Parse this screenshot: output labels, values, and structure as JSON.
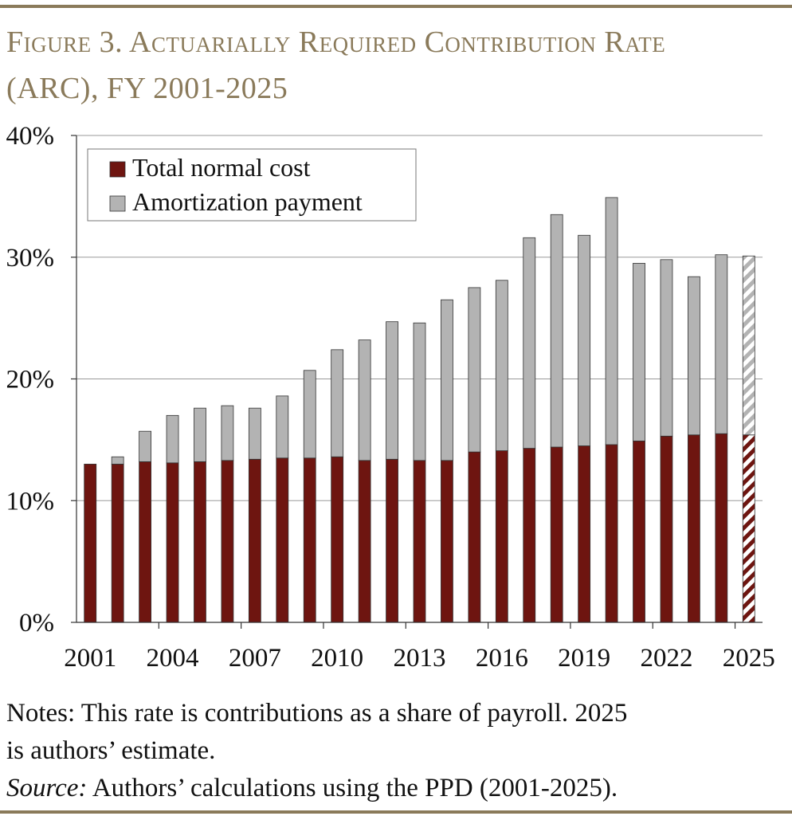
{
  "title": {
    "line1": "Figure 3. Actuarially Required Contribution Rate",
    "line2": "(ARC), FY 2001-2025"
  },
  "notes": {
    "line1": "Notes: This rate is contributions as a share of payroll.  2025",
    "line2": "is authors’ estimate.",
    "source_label": "Source:",
    "source_text": " Authors’ calculations using the PPD (2001-2025)."
  },
  "chart_data": {
    "type": "bar",
    "stacked": true,
    "title": "Actuarially Required Contribution Rate (ARC), FY 2001-2025",
    "xlabel": "",
    "ylabel": "",
    "ylim": [
      0,
      40
    ],
    "yticks": [
      0,
      10,
      20,
      30,
      40
    ],
    "ytick_labels": [
      "0%",
      "10%",
      "20%",
      "30%",
      "40%"
    ],
    "categories": [
      "2001",
      "2002",
      "2003",
      "2004",
      "2005",
      "2006",
      "2007",
      "2008",
      "2009",
      "2010",
      "2011",
      "2012",
      "2013",
      "2014",
      "2015",
      "2016",
      "2017",
      "2018",
      "2019",
      "2020",
      "2021",
      "2022",
      "2023",
      "2024",
      "2025"
    ],
    "xtick_labels": [
      "2001",
      "2004",
      "2007",
      "2010",
      "2013",
      "2016",
      "2019",
      "2022",
      "2025"
    ],
    "grid": true,
    "legend_position": "top-left",
    "estimated_categories": [
      "2025"
    ],
    "series": [
      {
        "name": "Total normal cost",
        "color": "#6e1510",
        "values": [
          13.0,
          13.0,
          13.2,
          13.1,
          13.2,
          13.3,
          13.4,
          13.5,
          13.5,
          13.6,
          13.3,
          13.4,
          13.3,
          13.3,
          14.0,
          14.1,
          14.3,
          14.4,
          14.5,
          14.6,
          14.9,
          15.3,
          15.4,
          15.5,
          15.4
        ]
      },
      {
        "name": "Amortization payment",
        "color": "#b3b3b3",
        "values": [
          0.0,
          0.6,
          2.5,
          3.9,
          4.4,
          4.5,
          4.2,
          5.1,
          7.2,
          8.8,
          9.9,
          11.3,
          11.3,
          13.2,
          13.5,
          14.0,
          17.3,
          19.1,
          17.3,
          20.3,
          14.6,
          14.5,
          13.0,
          14.7,
          14.7
        ]
      }
    ]
  }
}
